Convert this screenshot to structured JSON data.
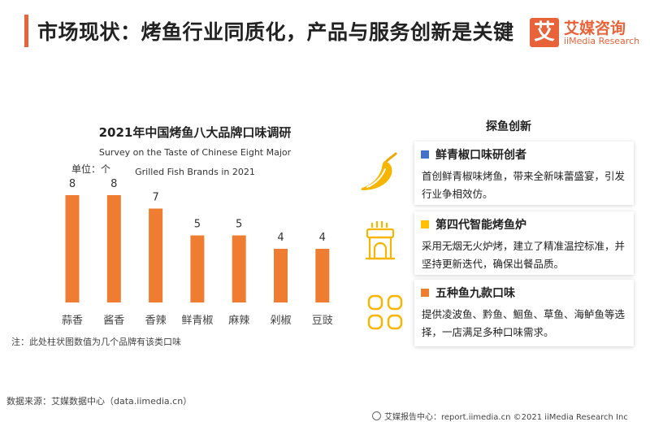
{
  "header": {
    "title": "市场现状：烤鱼行业同质化，产品与服务创新是关键",
    "accent_color": "#e8623a"
  },
  "logo": {
    "mark": "艾",
    "name_cn": "艾媒咨询",
    "name_en": "iiMedia Research"
  },
  "chart_data": {
    "type": "bar",
    "title": "2021年中国烤鱼八大品牌口味调研",
    "subtitle_line1": "Survey on the Taste of Chinese Eight Major",
    "subtitle_line2": "Grilled Fish Brands in 2021",
    "unit": "单位：个",
    "categories": [
      "蒜香",
      "酱香",
      "香辣",
      "鲜青椒",
      "麻辣",
      "剁椒",
      "豆豉"
    ],
    "values": [
      8,
      8,
      7,
      5,
      5,
      4,
      4
    ],
    "ylim": [
      0,
      8
    ],
    "bar_color": "#ef7d31",
    "grid": false,
    "note": "注：此处柱状图数值为几个品牌有该类口味"
  },
  "innovation": {
    "title": "探鱼创新",
    "cards": [
      {
        "title": "鲜青椒口味研创者",
        "color": "#4472c4",
        "icon": "pepper-icon",
        "desc": "首创鲜青椒味烤鱼，带来全新味蕾盛宴，引发行业争相效仿。"
      },
      {
        "title": "第四代智能烤鱼炉",
        "color": "#ffc000",
        "icon": "stove-icon",
        "desc": "采用无烟无火炉烤，建立了精准温控标准，并坚持更新迭代，确保出餐品质。"
      },
      {
        "title": "五种鱼九款口味",
        "color": "#ef7d31",
        "icon": "grid-icon",
        "desc": "提供凌波鱼、黔鱼、鮰鱼、草鱼、海鲈鱼等选择，一店满足多种口味需求。"
      }
    ]
  },
  "source": "数据来源：艾媒数据中心（data.iimedia.cn）",
  "footer": "艾媒报告中心：report.iimedia.cn   ©2021  iiMedia Research  Inc"
}
